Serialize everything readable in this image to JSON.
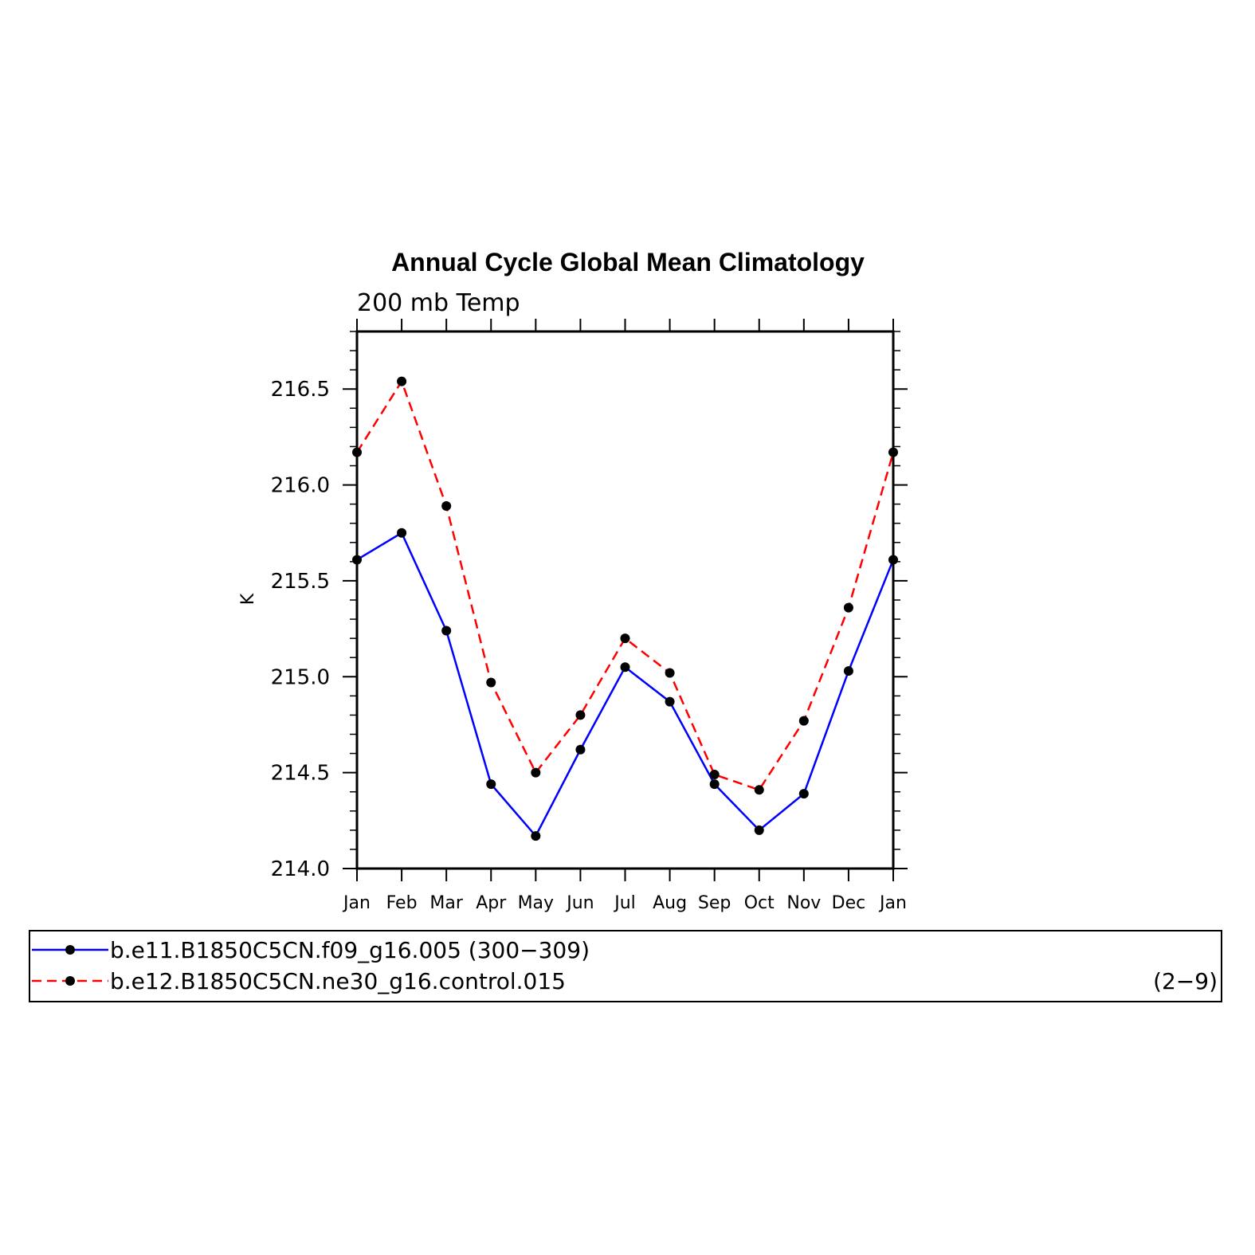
{
  "chart_data": {
    "type": "line",
    "title": "Annual Cycle Global Mean Climatology",
    "subtitle": "200 mb Temp",
    "ylabel": "K",
    "xlabel": "",
    "categories": [
      "Jan",
      "Feb",
      "Mar",
      "Apr",
      "May",
      "Jun",
      "Jul",
      "Aug",
      "Sep",
      "Oct",
      "Nov",
      "Dec",
      "Jan"
    ],
    "ylim": [
      214.0,
      216.8
    ],
    "yticks": [
      "214.0",
      "214.5",
      "215.0",
      "215.5",
      "216.0",
      "216.5"
    ],
    "grid": false,
    "legend_position": "bottom",
    "series": [
      {
        "name": "b.e11.B1850C5CN.f09_g16.005 (300−309)",
        "color": "#0000ff",
        "line_style": "solid",
        "marker": "filled-circle",
        "values": [
          215.61,
          215.75,
          215.24,
          214.44,
          214.17,
          214.62,
          215.05,
          214.87,
          214.44,
          214.2,
          214.39,
          215.03,
          215.61
        ]
      },
      {
        "name": "b.e12.B1850C5CN.ne30_g16.control.015",
        "name_suffix": "(2−9)",
        "color": "#ff0000",
        "line_style": "dashed",
        "marker": "filled-circle",
        "values": [
          216.17,
          216.54,
          215.89,
          214.97,
          214.5,
          214.8,
          215.2,
          215.02,
          214.49,
          214.41,
          214.77,
          215.36,
          216.17
        ]
      }
    ]
  }
}
